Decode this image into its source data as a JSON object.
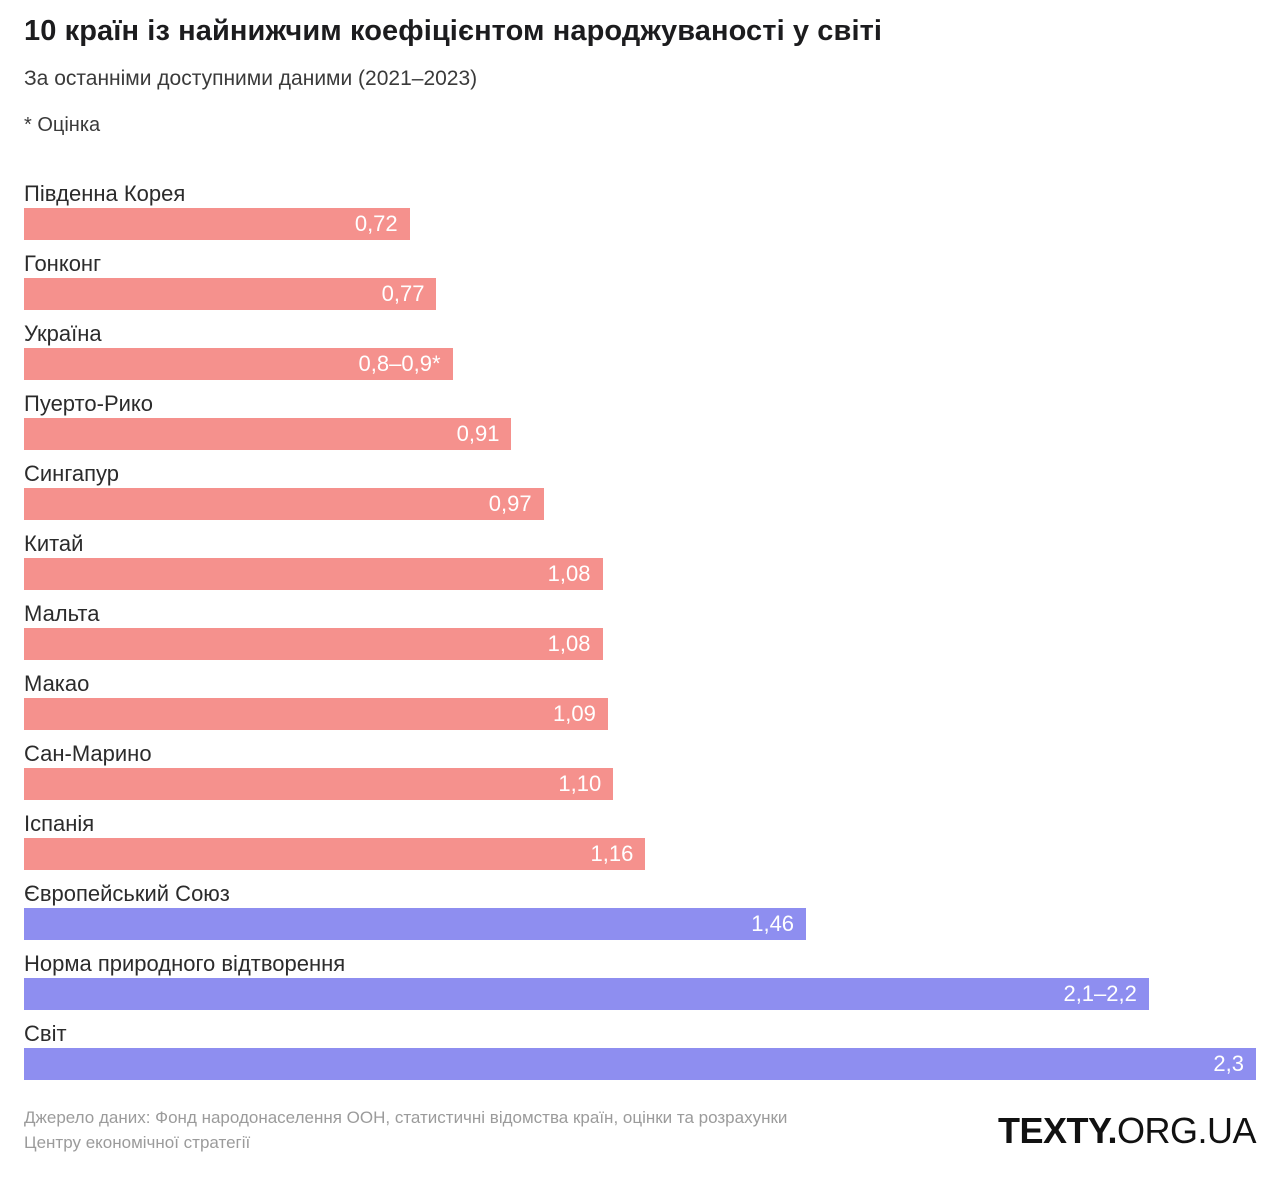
{
  "header": {
    "title": "10 країн із найнижчим коефіцієнтом народжуваності у світі",
    "subtitle": "За останніми доступними даними (2021–2023)",
    "note": "* Оцінка"
  },
  "chart_data": {
    "type": "bar",
    "orientation": "horizontal",
    "value_axis_max": 2.3,
    "legend": "none",
    "grid": false,
    "colors": {
      "country_bar": "#f5918d",
      "reference_bar": "#8e8ef0",
      "value_text": "#ffffff"
    },
    "bars": [
      {
        "label": "Південна Корея",
        "display": "0,72",
        "value": 0.72,
        "group": "country_bar"
      },
      {
        "label": "Гонконг",
        "display": "0,77",
        "value": 0.77,
        "group": "country_bar"
      },
      {
        "label": "Україна",
        "display": "0,8–0,9*",
        "value": 0.8,
        "group": "country_bar"
      },
      {
        "label": "Пуерто-Рико",
        "display": "0,91",
        "value": 0.91,
        "group": "country_bar"
      },
      {
        "label": "Сингапур",
        "display": "0,97",
        "value": 0.97,
        "group": "country_bar"
      },
      {
        "label": "Китай",
        "display": "1,08",
        "value": 1.08,
        "group": "country_bar"
      },
      {
        "label": "Мальта",
        "display": "1,08",
        "value": 1.08,
        "group": "country_bar"
      },
      {
        "label": "Макао",
        "display": "1,09",
        "value": 1.09,
        "group": "country_bar"
      },
      {
        "label": "Сан-Марино",
        "display": "1,10",
        "value": 1.1,
        "group": "country_bar"
      },
      {
        "label": "Іспанія",
        "display": "1,16",
        "value": 1.16,
        "group": "country_bar"
      },
      {
        "label": "Європейський Союз",
        "display": "1,46",
        "value": 1.46,
        "group": "reference_bar"
      },
      {
        "label": "Норма природного відтворення",
        "display": "2,1–2,2",
        "value": 2.1,
        "group": "reference_bar"
      },
      {
        "label": "Світ",
        "display": "2,3",
        "value": 2.3,
        "group": "reference_bar"
      }
    ]
  },
  "footer": {
    "source": "Джерело даних: Фонд народонаселення ООН, статистичні відомства країн, оцінки та розрахунки Центру економічної стратегії",
    "logo_bold": "TEXTY.",
    "logo_light": "ORG.UA"
  }
}
